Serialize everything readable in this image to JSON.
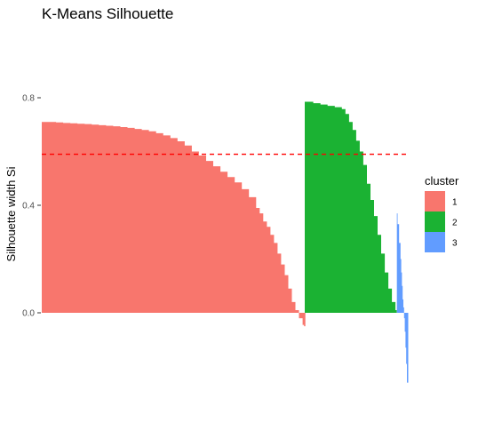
{
  "chart_data": {
    "type": "area",
    "title": "K-Means Silhouette",
    "xlabel": "",
    "ylabel": "Silhouette width Si",
    "ylim": [
      -0.26,
      0.95
    ],
    "y_ticks": [
      {
        "value": 0.0,
        "label": "0.0"
      },
      {
        "value": 0.4,
        "label": "0.4"
      },
      {
        "value": 0.8,
        "label": "0.8"
      }
    ],
    "average_silhouette": 0.59,
    "average_line_color": "#ff0000",
    "x_axis_visible": false,
    "grid": false,
    "legend": {
      "title": "cluster",
      "position": "right"
    },
    "series": [
      {
        "name": "1",
        "color": "#f8766d",
        "x": [
          0,
          10,
          20,
          30,
          40,
          50,
          60,
          70,
          80,
          90,
          100,
          110,
          120,
          130,
          140,
          150,
          160,
          170,
          180,
          190,
          200,
          210,
          220,
          230,
          240,
          250,
          260,
          270,
          280,
          290,
          300,
          305,
          310,
          315,
          320,
          325,
          330,
          335,
          340,
          345,
          350,
          355,
          360,
          365,
          367
        ],
        "values": [
          0.71,
          0.71,
          0.708,
          0.706,
          0.705,
          0.703,
          0.702,
          0.7,
          0.698,
          0.696,
          0.694,
          0.691,
          0.688,
          0.684,
          0.68,
          0.675,
          0.668,
          0.66,
          0.65,
          0.638,
          0.622,
          0.6,
          0.585,
          0.565,
          0.545,
          0.525,
          0.505,
          0.485,
          0.46,
          0.43,
          0.39,
          0.37,
          0.34,
          0.32,
          0.29,
          0.26,
          0.22,
          0.18,
          0.14,
          0.09,
          0.04,
          0.01,
          -0.02,
          -0.045,
          -0.05
        ]
      },
      {
        "name": "2",
        "color": "#1bb233",
        "x": [
          368,
          380,
          390,
          400,
          410,
          420,
          425,
          430,
          435,
          440,
          445,
          450,
          455,
          460,
          465,
          470,
          475,
          480,
          485,
          490,
          495
        ],
        "values": [
          0.785,
          0.78,
          0.775,
          0.77,
          0.765,
          0.758,
          0.74,
          0.71,
          0.68,
          0.64,
          0.6,
          0.55,
          0.48,
          0.42,
          0.36,
          0.29,
          0.22,
          0.15,
          0.09,
          0.04,
          0.01
        ]
      },
      {
        "name": "3",
        "color": "#619cff",
        "x": [
          497,
          498,
          500,
          502,
          503,
          504,
          505,
          506,
          507,
          508,
          509,
          510,
          511
        ],
        "values": [
          0.37,
          0.33,
          0.26,
          0.2,
          0.15,
          0.1,
          0.05,
          0.02,
          -0.02,
          -0.07,
          -0.13,
          -0.19,
          -0.26
        ]
      }
    ]
  }
}
